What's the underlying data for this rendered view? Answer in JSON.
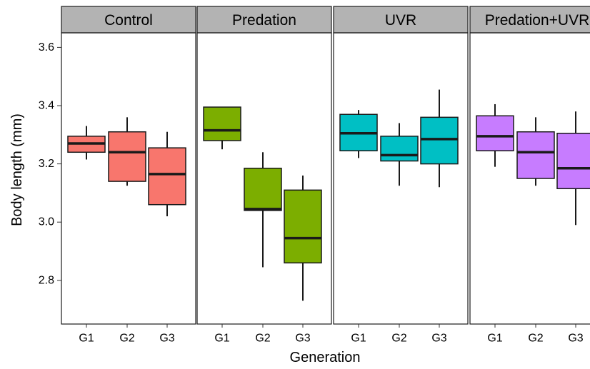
{
  "chart_data": {
    "type": "box",
    "ylabel": "Body length (mm)",
    "xlabel": "Generation",
    "ylim": [
      2.65,
      3.65
    ],
    "y_ticks": [
      2.8,
      3.0,
      3.2,
      3.4,
      3.6
    ],
    "y_tick_labels": [
      "2.8",
      "3.0",
      "3.2",
      "3.4",
      "3.6"
    ],
    "grid": false,
    "categories": [
      "G1",
      "G2",
      "G3"
    ],
    "panels": [
      {
        "name": "Control",
        "color": "#F8766D",
        "boxes": [
          {
            "category": "G1",
            "min": 3.215,
            "q1": 3.24,
            "median": 3.27,
            "q3": 3.295,
            "max": 3.33
          },
          {
            "category": "G2",
            "min": 3.125,
            "q1": 3.14,
            "median": 3.24,
            "q3": 3.31,
            "max": 3.36
          },
          {
            "category": "G3",
            "min": 3.02,
            "q1": 3.06,
            "median": 3.165,
            "q3": 3.255,
            "max": 3.31
          }
        ]
      },
      {
        "name": "Predation",
        "color": "#7CAE00",
        "boxes": [
          {
            "category": "G1",
            "min": 3.25,
            "q1": 3.28,
            "median": 3.315,
            "q3": 3.395,
            "max": 3.395
          },
          {
            "category": "G2",
            "min": 2.845,
            "q1": 3.04,
            "median": 3.045,
            "q3": 3.185,
            "max": 3.24
          },
          {
            "category": "G3",
            "min": 2.73,
            "q1": 2.86,
            "median": 2.945,
            "q3": 3.11,
            "max": 3.16
          }
        ]
      },
      {
        "name": "UVR",
        "color": "#00BFC4",
        "boxes": [
          {
            "category": "G1",
            "min": 3.22,
            "q1": 3.245,
            "median": 3.305,
            "q3": 3.37,
            "max": 3.385
          },
          {
            "category": "G2",
            "min": 3.125,
            "q1": 3.21,
            "median": 3.23,
            "q3": 3.295,
            "max": 3.34
          },
          {
            "category": "G3",
            "min": 3.12,
            "q1": 3.2,
            "median": 3.285,
            "q3": 3.36,
            "max": 3.455
          }
        ]
      },
      {
        "name": "Predation+UVR",
        "color": "#C77CFF",
        "boxes": [
          {
            "category": "G1",
            "min": 3.19,
            "q1": 3.245,
            "median": 3.295,
            "q3": 3.365,
            "max": 3.405
          },
          {
            "category": "G2",
            "min": 3.125,
            "q1": 3.15,
            "median": 3.24,
            "q3": 3.31,
            "max": 3.36
          },
          {
            "category": "G3",
            "min": 2.99,
            "q1": 3.115,
            "median": 3.185,
            "q3": 3.305,
            "max": 3.38
          }
        ]
      }
    ]
  }
}
